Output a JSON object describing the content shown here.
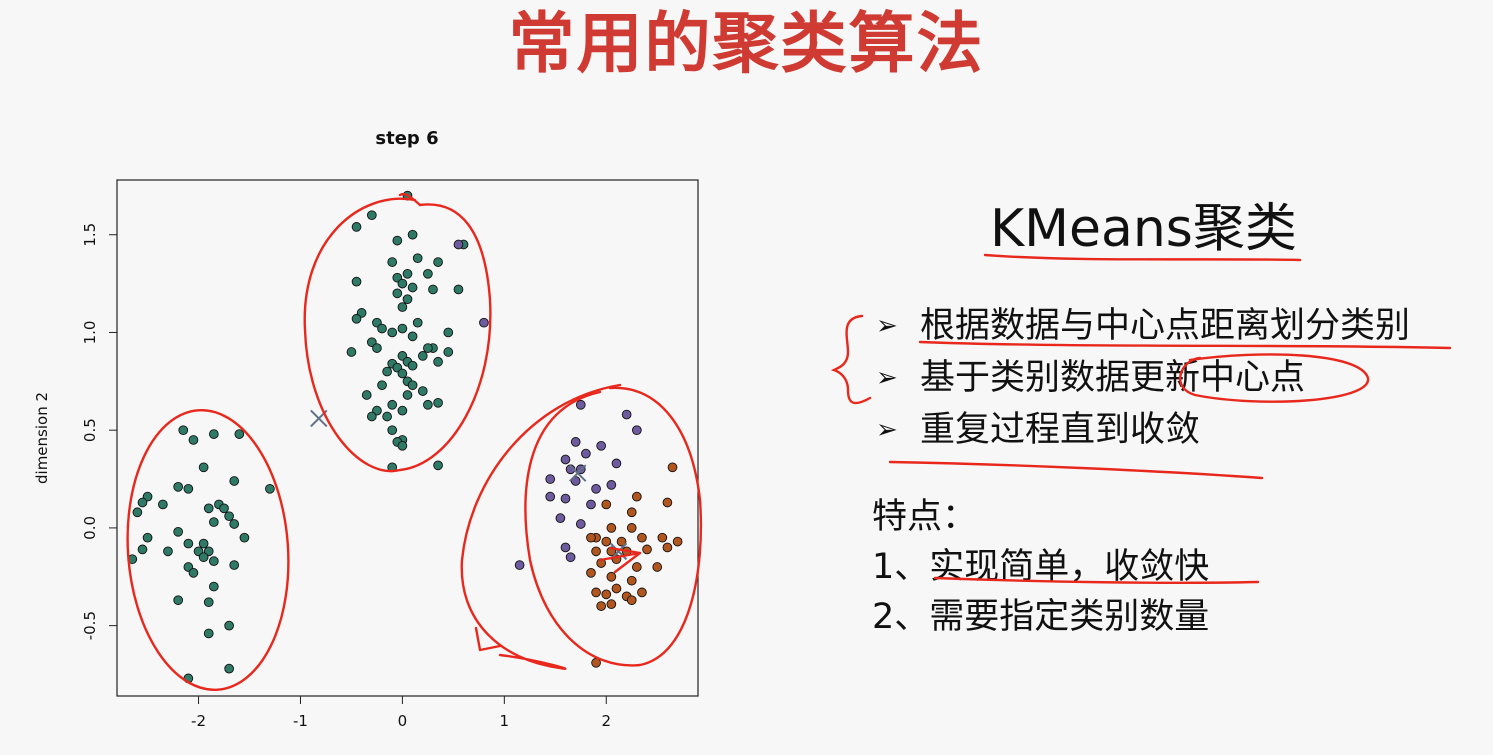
{
  "slide": {
    "title": "常用的聚类算法"
  },
  "text_panel": {
    "heading": "KMeans聚类",
    "bullets": [
      "根据数据与中心点距离划分类别",
      "基于类别数据更新中心点",
      "重复过程直到收敛"
    ],
    "features_label": "特点：",
    "features": [
      "1、实现简单，收敛快",
      "2、需要指定类别数量"
    ]
  },
  "colors": {
    "title": "#cf3b33",
    "annotation": "#e8281c",
    "cluster_green": "#2e7a66",
    "cluster_purple": "#6e5a9e",
    "cluster_brown": "#b0561e",
    "center_marker": "#607087"
  },
  "chart_data": {
    "type": "scatter",
    "title": "step 6",
    "xlabel": "",
    "ylabel": "dimension 2",
    "xlim": [
      -2.8,
      2.9
    ],
    "ylim": [
      -0.86,
      1.78
    ],
    "xticks": [
      -2,
      -1,
      0,
      1,
      2
    ],
    "yticks": [
      -0.5,
      0.0,
      0.5,
      1.0,
      1.5
    ],
    "grid": false,
    "series": [
      {
        "cluster": 1,
        "color": "#2e7a66",
        "points": [
          [
            -2.15,
            0.5
          ],
          [
            -2.05,
            0.45
          ],
          [
            -1.85,
            0.48
          ],
          [
            -1.6,
            0.48
          ],
          [
            -1.95,
            0.31
          ],
          [
            -1.3,
            0.2
          ],
          [
            -2.5,
            0.16
          ],
          [
            -2.55,
            0.13
          ],
          [
            -2.2,
            0.21
          ],
          [
            -2.1,
            0.2
          ],
          [
            -1.8,
            0.12
          ],
          [
            -1.65,
            0.24
          ],
          [
            -2.35,
            0.12
          ],
          [
            -2.6,
            0.08
          ],
          [
            -1.9,
            0.1
          ],
          [
            -1.75,
            0.1
          ],
          [
            -1.7,
            0.06
          ],
          [
            -1.85,
            0.03
          ],
          [
            -2.5,
            -0.05
          ],
          [
            -2.2,
            -0.02
          ],
          [
            -2.1,
            -0.08
          ],
          [
            -1.65,
            0.02
          ],
          [
            -1.95,
            -0.08
          ],
          [
            -1.9,
            -0.12
          ],
          [
            -1.55,
            -0.05
          ],
          [
            -2.55,
            -0.11
          ],
          [
            -2.3,
            -0.12
          ],
          [
            -2.0,
            -0.12
          ],
          [
            -1.95,
            -0.15
          ],
          [
            -2.65,
            -0.16
          ],
          [
            -2.1,
            -0.2
          ],
          [
            -1.85,
            -0.17
          ],
          [
            -1.65,
            -0.19
          ],
          [
            -2.05,
            -0.23
          ],
          [
            -1.85,
            -0.3
          ],
          [
            -2.2,
            -0.37
          ],
          [
            -1.9,
            -0.38
          ],
          [
            -1.9,
            -0.54
          ],
          [
            -1.7,
            -0.5
          ],
          [
            -1.7,
            -0.72
          ],
          [
            -2.1,
            -0.77
          ],
          [
            0.05,
            1.7
          ],
          [
            -0.3,
            1.6
          ],
          [
            -0.45,
            1.54
          ],
          [
            0.1,
            1.5
          ],
          [
            -0.05,
            1.47
          ],
          [
            0.6,
            1.45
          ],
          [
            -0.1,
            1.36
          ],
          [
            0.15,
            1.38
          ],
          [
            0.35,
            1.36
          ],
          [
            0.05,
            1.3
          ],
          [
            -0.05,
            1.28
          ],
          [
            0.25,
            1.3
          ],
          [
            -0.45,
            1.26
          ],
          [
            0.0,
            1.25
          ],
          [
            0.1,
            1.23
          ],
          [
            -0.05,
            1.2
          ],
          [
            0.3,
            1.22
          ],
          [
            0.55,
            1.22
          ],
          [
            0.05,
            1.17
          ],
          [
            0.0,
            1.13
          ],
          [
            -0.4,
            1.1
          ],
          [
            -0.25,
            1.05
          ],
          [
            -0.45,
            1.07
          ],
          [
            0.15,
            1.05
          ],
          [
            0.45,
            1.0
          ],
          [
            -0.1,
            1.0
          ],
          [
            -0.2,
            1.02
          ],
          [
            0.0,
            1.02
          ],
          [
            0.1,
            0.98
          ],
          [
            -0.3,
            0.95
          ],
          [
            -0.25,
            0.92
          ],
          [
            0.3,
            0.92
          ],
          [
            0.45,
            0.9
          ],
          [
            -0.5,
            0.9
          ],
          [
            0.0,
            0.88
          ],
          [
            0.2,
            0.88
          ],
          [
            0.25,
            0.92
          ],
          [
            -0.1,
            0.84
          ],
          [
            0.05,
            0.85
          ],
          [
            -0.05,
            0.82
          ],
          [
            0.1,
            0.83
          ],
          [
            0.0,
            0.79
          ],
          [
            -0.15,
            0.8
          ],
          [
            0.35,
            0.85
          ],
          [
            0.05,
            0.75
          ],
          [
            0.1,
            0.73
          ],
          [
            -0.2,
            0.73
          ],
          [
            -0.35,
            0.68
          ],
          [
            0.05,
            0.68
          ],
          [
            0.2,
            0.7
          ],
          [
            -0.1,
            0.63
          ],
          [
            0.25,
            0.63
          ],
          [
            0.35,
            0.64
          ],
          [
            -0.25,
            0.6
          ],
          [
            0.0,
            0.6
          ],
          [
            -0.15,
            0.57
          ],
          [
            -0.3,
            0.57
          ],
          [
            -0.1,
            0.5
          ],
          [
            0.0,
            0.45
          ],
          [
            -0.05,
            0.44
          ],
          [
            0.0,
            0.42
          ],
          [
            0.35,
            0.32
          ],
          [
            -0.1,
            0.31
          ]
        ]
      },
      {
        "cluster": 2,
        "color": "#6e5a9e",
        "points": [
          [
            0.55,
            1.45
          ],
          [
            0.8,
            1.05
          ],
          [
            1.75,
            0.63
          ],
          [
            2.2,
            0.58
          ],
          [
            2.3,
            0.5
          ],
          [
            1.7,
            0.44
          ],
          [
            1.95,
            0.42
          ],
          [
            1.8,
            0.38
          ],
          [
            1.6,
            0.35
          ],
          [
            2.1,
            0.33
          ],
          [
            1.65,
            0.3
          ],
          [
            1.75,
            0.3
          ],
          [
            1.7,
            0.24
          ],
          [
            1.45,
            0.25
          ],
          [
            2.05,
            0.22
          ],
          [
            1.9,
            0.2
          ],
          [
            1.45,
            0.16
          ],
          [
            1.6,
            0.15
          ],
          [
            1.85,
            0.12
          ],
          [
            1.55,
            0.05
          ],
          [
            1.75,
            0.02
          ],
          [
            1.6,
            -0.1
          ],
          [
            1.65,
            -0.15
          ],
          [
            1.15,
            -0.19
          ]
        ]
      },
      {
        "cluster": 3,
        "color": "#b0561e",
        "points": [
          [
            2.65,
            0.31
          ],
          [
            2.3,
            0.16
          ],
          [
            2.0,
            0.12
          ],
          [
            2.6,
            0.13
          ],
          [
            2.25,
            0.08
          ],
          [
            2.05,
            0.0
          ],
          [
            2.25,
            0.0
          ],
          [
            1.9,
            -0.05
          ],
          [
            1.85,
            -0.05
          ],
          [
            2.0,
            -0.07
          ],
          [
            2.15,
            -0.07
          ],
          [
            2.35,
            -0.05
          ],
          [
            2.55,
            -0.05
          ],
          [
            2.7,
            -0.07
          ],
          [
            1.9,
            -0.12
          ],
          [
            2.05,
            -0.12
          ],
          [
            2.2,
            -0.12
          ],
          [
            2.4,
            -0.11
          ],
          [
            2.6,
            -0.1
          ],
          [
            1.95,
            -0.18
          ],
          [
            2.1,
            -0.16
          ],
          [
            2.3,
            -0.2
          ],
          [
            2.5,
            -0.2
          ],
          [
            1.85,
            -0.23
          ],
          [
            2.05,
            -0.25
          ],
          [
            2.25,
            -0.27
          ],
          [
            2.1,
            -0.31
          ],
          [
            2.0,
            -0.34
          ],
          [
            1.9,
            -0.33
          ],
          [
            2.2,
            -0.35
          ],
          [
            2.35,
            -0.33
          ],
          [
            1.95,
            -0.4
          ],
          [
            2.05,
            -0.39
          ],
          [
            2.25,
            -0.37
          ],
          [
            1.9,
            -0.69
          ]
        ]
      }
    ],
    "centers": [
      [
        -0.82,
        0.56
      ],
      [
        1.72,
        0.28
      ],
      [
        2.12,
        -0.12
      ]
    ]
  }
}
